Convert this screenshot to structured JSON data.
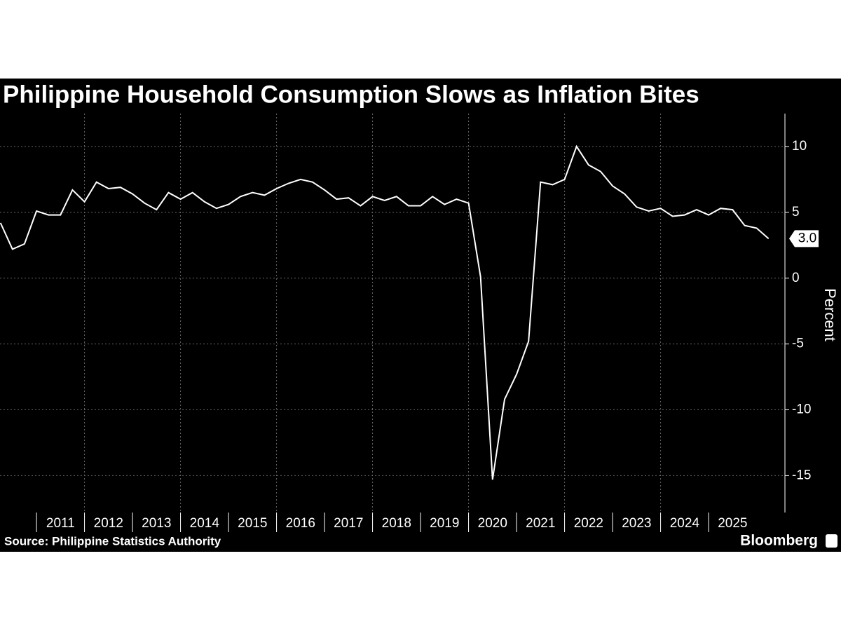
{
  "chart_data": {
    "type": "line",
    "title": "Philippine Household Consumption Slows as Inflation Bites",
    "y_label": "Percent",
    "source": "Source: Philippine Statistics Authority",
    "brand": "Bloomberg",
    "x": [
      2010.25,
      2010.5,
      2010.75,
      2011,
      2011.25,
      2011.5,
      2011.75,
      2012,
      2012.25,
      2012.5,
      2012.75,
      2013,
      2013.25,
      2013.5,
      2013.75,
      2014,
      2014.25,
      2014.5,
      2014.75,
      2015,
      2015.25,
      2015.5,
      2015.75,
      2016,
      2016.25,
      2016.5,
      2016.75,
      2017,
      2017.25,
      2017.5,
      2017.75,
      2018,
      2018.25,
      2018.5,
      2018.75,
      2019,
      2019.25,
      2019.5,
      2019.75,
      2020,
      2020.25,
      2020.5,
      2020.75,
      2021,
      2021.25,
      2021.5,
      2021.75,
      2022,
      2022.25,
      2022.5,
      2022.75,
      2023,
      2023.25,
      2023.5,
      2023.75,
      2024,
      2024.25,
      2024.5,
      2024.75,
      2025,
      2025.25,
      2025.5,
      2025.75,
      2026,
      2026.25
    ],
    "series": [
      {
        "name": "Household consumption",
        "color": "#ffffff",
        "values": [
          4.2,
          2.2,
          2.6,
          5.1,
          4.8,
          4.8,
          6.7,
          5.8,
          7.3,
          6.8,
          6.9,
          6.4,
          5.7,
          5.2,
          6.5,
          6.0,
          6.5,
          5.8,
          5.3,
          5.6,
          6.2,
          6.5,
          6.3,
          6.8,
          7.2,
          7.5,
          7.3,
          6.7,
          6.0,
          6.1,
          5.5,
          6.2,
          5.9,
          6.2,
          5.5,
          5.5,
          6.2,
          5.6,
          6.0,
          5.7,
          0.1,
          -15.3,
          -9.2,
          -7.3,
          -4.8,
          7.3,
          7.1,
          7.5,
          10.0,
          8.6,
          8.1,
          7.0,
          6.4,
          5.4,
          5.1,
          5.3,
          4.7,
          4.8,
          5.2,
          4.8,
          5.3,
          5.2,
          4.0,
          3.8,
          3.0
        ],
        "value_labels": [
          null,
          null,
          null,
          null,
          null,
          null,
          null,
          null,
          null,
          null,
          null,
          null,
          null,
          null,
          null,
          null,
          null,
          null,
          null,
          null,
          null,
          null,
          null,
          null,
          null,
          null,
          null,
          null,
          null,
          null,
          null,
          null,
          null,
          null,
          null,
          null,
          null,
          null,
          null,
          null,
          null,
          null,
          null,
          null,
          null,
          null,
          null,
          null,
          null,
          null,
          null,
          null,
          null,
          null,
          null,
          null,
          null,
          null,
          null,
          null,
          null,
          null,
          null,
          null,
          "3.0"
        ]
      }
    ],
    "xlim": [
      2010.24,
      2026.59
    ],
    "xticks": [
      {
        "value": 2011.5,
        "label": "2011"
      },
      {
        "value": 2012.5,
        "label": "2012"
      },
      {
        "value": 2013.5,
        "label": "2013"
      },
      {
        "value": 2014.5,
        "label": "2014"
      },
      {
        "value": 2015.5,
        "label": "2015"
      },
      {
        "value": 2016.5,
        "label": "2016"
      },
      {
        "value": 2017.5,
        "label": "2017"
      },
      {
        "value": 2018.5,
        "label": "2018"
      },
      {
        "value": 2019.5,
        "label": "2019"
      },
      {
        "value": 2020.5,
        "label": "2020"
      },
      {
        "value": 2021.5,
        "label": "2021"
      },
      {
        "value": 2022.5,
        "label": "2022"
      },
      {
        "value": 2023.5,
        "label": "2023"
      },
      {
        "value": 2024.5,
        "label": "2024"
      },
      {
        "value": 2025.5,
        "label": "2025"
      }
    ],
    "ylim": [
      -17.8,
      12.5
    ],
    "yticks": [
      -15,
      -10,
      -5,
      0,
      5,
      10
    ],
    "grid": true
  }
}
